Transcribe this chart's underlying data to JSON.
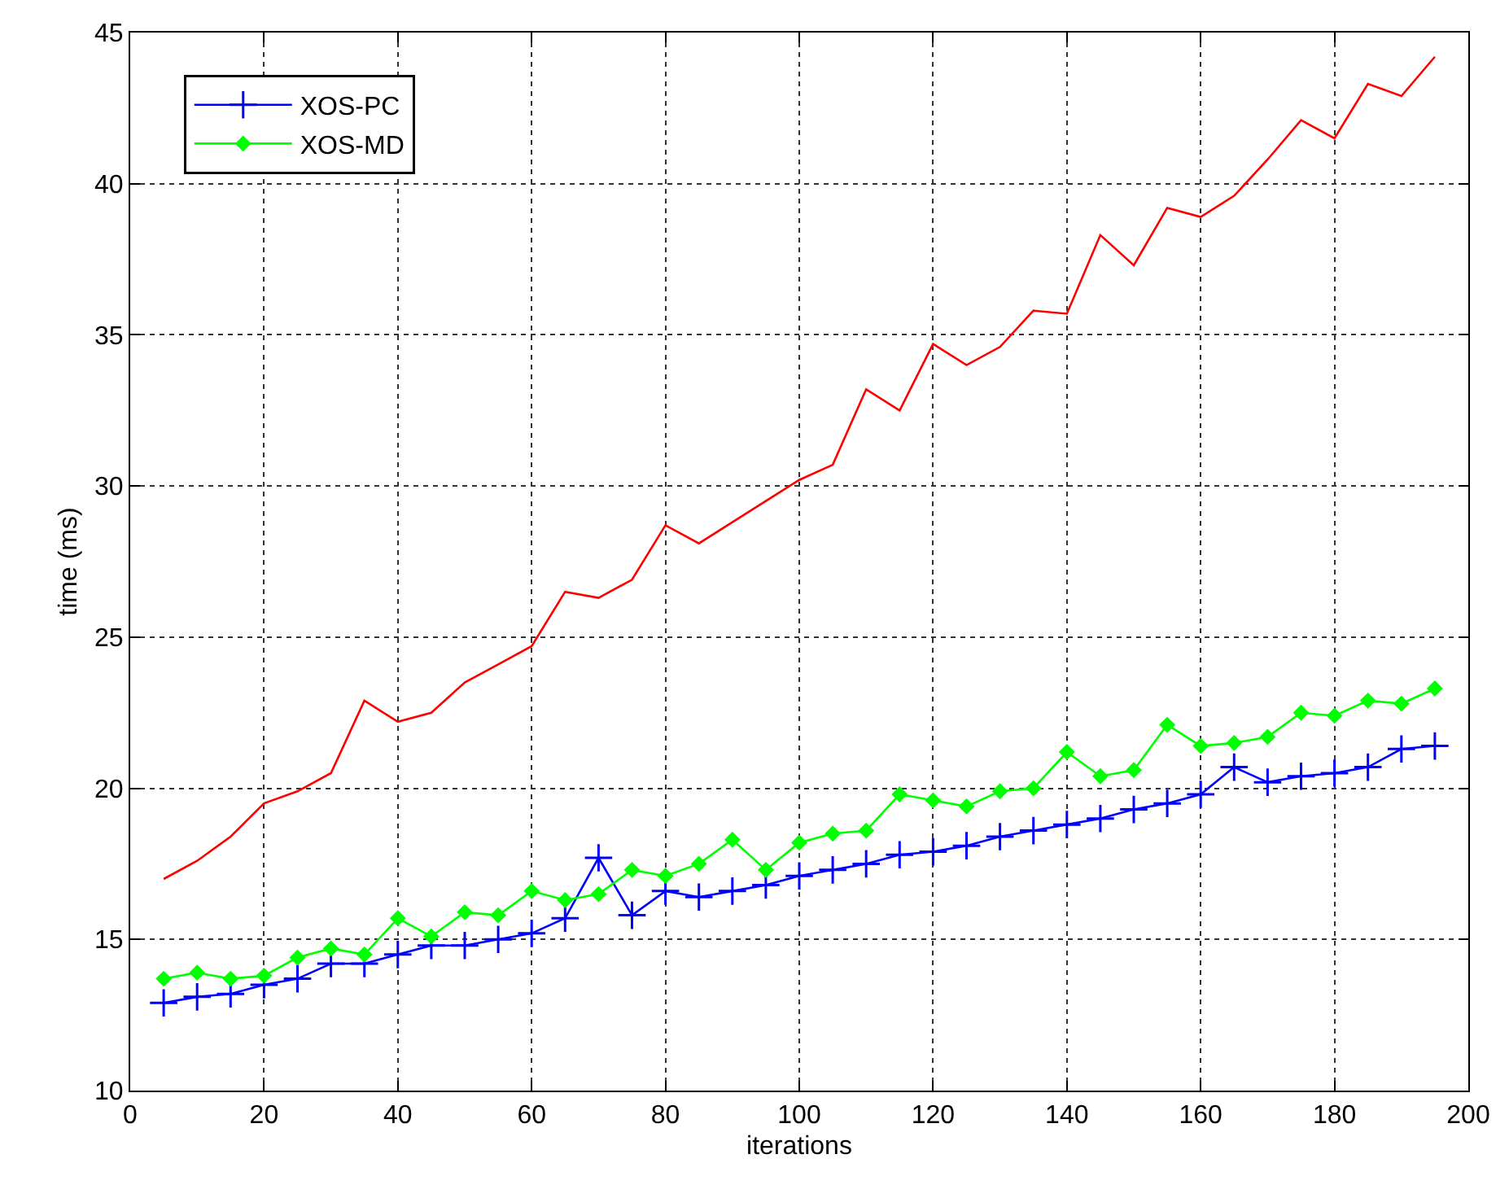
{
  "chart_data": {
    "type": "line",
    "xlabel": "iterations",
    "ylabel": "time (ms)",
    "x": [
      5,
      10,
      15,
      20,
      25,
      30,
      35,
      40,
      45,
      50,
      55,
      60,
      65,
      70,
      75,
      80,
      85,
      90,
      95,
      100,
      105,
      110,
      115,
      120,
      125,
      130,
      135,
      140,
      145,
      150,
      155,
      160,
      165,
      170,
      175,
      180,
      185,
      190,
      195
    ],
    "series": [
      {
        "color": "#ff0000",
        "marker": "none",
        "values": [
          17.0,
          17.6,
          18.4,
          19.5,
          19.9,
          20.5,
          22.9,
          22.2,
          22.5,
          23.5,
          24.1,
          24.7,
          26.5,
          26.3,
          26.9,
          28.7,
          28.1,
          28.8,
          29.5,
          30.2,
          30.7,
          33.2,
          32.5,
          34.7,
          34.0,
          34.6,
          35.8,
          35.7,
          38.3,
          37.3,
          39.2,
          38.9,
          39.6,
          40.8,
          42.1,
          41.5,
          43.3,
          42.9,
          44.2
        ]
      },
      {
        "name": "XOS-PC",
        "color": "#0000ff",
        "marker": "cross",
        "values": [
          12.9,
          13.1,
          13.2,
          13.5,
          13.7,
          14.2,
          14.2,
          14.5,
          14.8,
          14.8,
          15.0,
          15.2,
          15.7,
          17.7,
          15.8,
          16.6,
          16.4,
          16.6,
          16.8,
          17.1,
          17.3,
          17.5,
          17.8,
          17.9,
          18.1,
          18.4,
          18.6,
          18.8,
          19.0,
          19.3,
          19.5,
          19.8,
          20.7,
          20.2,
          20.4,
          20.5,
          20.7,
          21.3,
          21.4
        ]
      },
      {
        "name": "XOS-MD",
        "color": "#00ff00",
        "marker": "diamond",
        "values": [
          13.7,
          13.9,
          13.7,
          13.8,
          14.4,
          14.7,
          14.5,
          15.7,
          15.1,
          15.9,
          15.8,
          16.6,
          16.3,
          16.5,
          17.3,
          17.1,
          17.5,
          18.3,
          17.3,
          18.2,
          18.5,
          18.6,
          19.8,
          19.6,
          19.4,
          19.9,
          20.0,
          21.2,
          20.4,
          20.6,
          22.1,
          21.4,
          21.5,
          21.7,
          22.5,
          22.4,
          22.9,
          22.8,
          23.3
        ]
      }
    ],
    "xlim": [
      0,
      200
    ],
    "xticks": [
      0,
      20,
      40,
      60,
      80,
      100,
      120,
      140,
      160,
      180,
      200
    ],
    "ylim": [
      10,
      45
    ],
    "yticks": [
      10,
      15,
      20,
      25,
      30,
      35,
      40,
      45
    ],
    "grid": true,
    "legend": "top left",
    "line_style": "solid"
  }
}
